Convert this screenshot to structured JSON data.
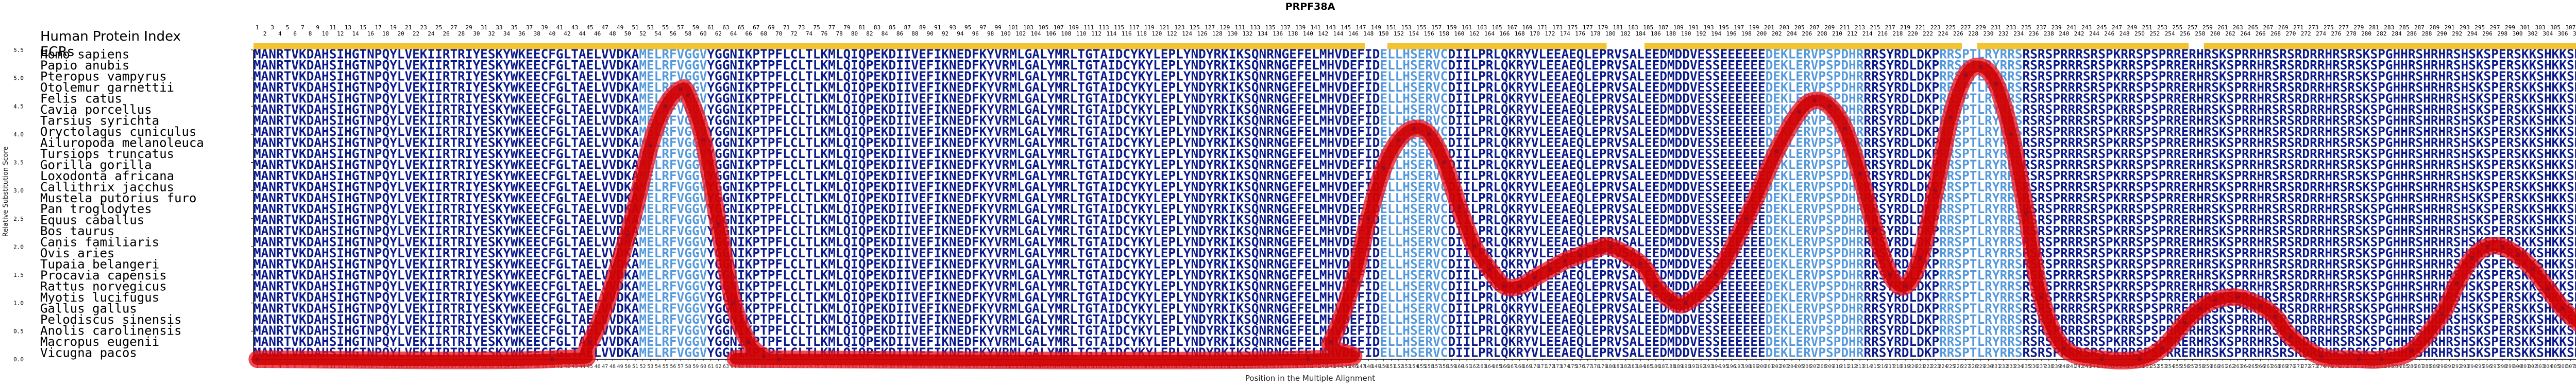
{
  "chart_data": {
    "type": "line",
    "title": "PRPF38A",
    "xlabel": "Position in the Multiple Alignment",
    "ylabel": "Relative Substitution Score",
    "ylim": [
      0,
      5.5
    ],
    "yticks": [
      0.0,
      0.5,
      1.0,
      1.5,
      2.0,
      2.5,
      3.0,
      3.5,
      4.0,
      4.5,
      5.0,
      5.5
    ],
    "xlim": [
      1,
      312
    ],
    "grid": false,
    "header_labels": {
      "index": "Human Protein Index",
      "ecrs": "ECRs"
    },
    "sequence": "MANRTVKDAHSIHGTNPQYLVEKIIRTRIYESKYWKEECFGLTAELVVDKAMELRFVGGVYGGNIKPTPFLCLTLKMLQIQPEKDIIVEFIKNEDFKYVRMLGALYMRLTGTAIDCYKYLEPLYNDYRKIKSQNRNGEFELMHVDEFIDELLHSERVCDIILPRLQKRYVLEEAEQLEPRVSALEEDMDDVESSEEEEEEDEKLERVPSPDHRRRSYRDLDKPRRSPTLRYRRSRSRSPRRRSRSPKRRSPSPRRERHRSKSPRRHRSRSRDRRHRSRSKSPGHHRSHRHRSHSKSPERSKKSHKKSRRGNE",
    "species": [
      "Homo sapiens",
      "Papio anubis",
      "Pteropus vampyrus",
      "Otolemur garnettii",
      "Felis catus",
      "Cavia porcellus",
      "Tarsius syrichta",
      "Oryctolagus cuniculus",
      "Ailuropoda melanoleuca",
      "Tursiops truncatus",
      "Gorilla gorilla",
      "Loxodonta africana",
      "Callithrix jacchus",
      "Mustela putorius furo",
      "Pan troglodytes",
      "Equus caballus",
      "Bos taurus",
      "Canis familiaris",
      "Ovis aries",
      "Tupaia belangeri",
      "Procavia capensis",
      "Rattus norvegicus",
      "Myotis lucifugus",
      "Gallus gallus",
      "Pelodiscus sinensis",
      "Anolis carolinensis",
      "Macropus eugenii",
      "Vicugna pacos"
    ],
    "ecr_regions": [
      [
        1,
        56
      ],
      [
        57,
        147
      ],
      [
        151,
        179
      ],
      [
        185,
        226
      ],
      [
        229,
        256
      ],
      [
        259,
        312
      ]
    ],
    "series": [
      {
        "color": "#cc0000",
        "x": [
          1,
          40,
          45,
          50,
          53,
          55,
          57,
          58,
          60,
          62,
          64,
          66,
          68,
          70,
          140,
          143,
          146,
          148,
          150,
          152,
          154,
          156,
          158,
          160,
          162,
          164,
          166,
          168,
          170,
          172,
          174,
          176,
          178,
          180,
          184,
          186,
          188,
          190,
          194,
          198,
          202,
          205,
          207,
          209,
          211,
          213,
          215,
          217,
          219,
          221,
          223,
          225,
          227,
          229,
          231,
          233,
          235,
          237,
          240,
          245,
          250,
          253,
          256,
          258,
          260,
          263,
          266,
          268,
          270,
          274,
          279,
          282,
          286,
          290,
          292,
          294,
          296,
          298,
          300,
          302,
          304,
          306,
          308,
          310,
          312
        ],
        "y": [
          0.0,
          0.0,
          0.3,
          2.2,
          3.8,
          4.5,
          4.8,
          4.7,
          3.9,
          2.4,
          1.0,
          0.3,
          0.05,
          0.0,
          0.0,
          0.3,
          1.4,
          2.5,
          3.4,
          3.9,
          4.1,
          4.0,
          3.5,
          2.7,
          2.0,
          1.6,
          1.3,
          1.3,
          1.45,
          1.6,
          1.75,
          1.85,
          1.95,
          2.0,
          1.7,
          1.3,
          1.05,
          1.0,
          1.5,
          2.5,
          3.7,
          4.4,
          4.6,
          4.5,
          4.1,
          3.3,
          2.3,
          1.5,
          1.3,
          1.8,
          3.0,
          4.3,
          5.05,
          5.2,
          4.9,
          4.0,
          2.6,
          1.1,
          0.2,
          0.0,
          0.0,
          0.2,
          0.65,
          0.9,
          1.05,
          1.1,
          0.95,
          0.75,
          0.4,
          0.05,
          0.0,
          0.0,
          0.15,
          0.8,
          1.35,
          1.8,
          2.0,
          2.0,
          1.85,
          1.6,
          1.25,
          0.9,
          0.65,
          0.45,
          0.3
        ]
      }
    ]
  }
}
